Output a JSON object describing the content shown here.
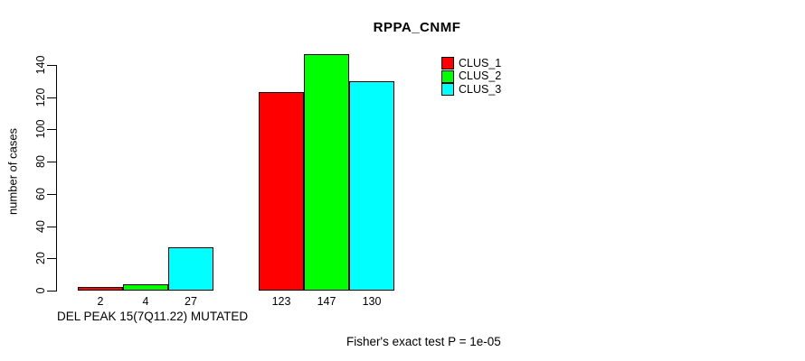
{
  "title": "RPPA_CNMF",
  "chart_data": {
    "type": "bar",
    "title": "RPPA_CNMF",
    "ylabel": "number of cases",
    "xlabel": "DEL PEAK 15(7Q11.22) MUTATED",
    "footnote": "Fisher's exact test P = 1e-05",
    "ylim": [
      0,
      140
    ],
    "yticks": [
      0,
      20,
      40,
      60,
      80,
      100,
      120,
      140
    ],
    "grid": false,
    "legend_position": "top-right",
    "groups": [
      {
        "bar_labels": [
          "2",
          "4",
          "27"
        ]
      },
      {
        "bar_labels": [
          "123",
          "147",
          "130"
        ]
      }
    ],
    "series": [
      {
        "name": "CLUS_1",
        "color": "#ff0000",
        "values": [
          2,
          123
        ]
      },
      {
        "name": "CLUS_2",
        "color": "#00ff00",
        "values": [
          4,
          147
        ]
      },
      {
        "name": "CLUS_3",
        "color": "#00ffff",
        "values": [
          27,
          130
        ]
      }
    ],
    "colors": {
      "background": "#ffffff",
      "axis": "#000000",
      "text": "#000000"
    }
  }
}
